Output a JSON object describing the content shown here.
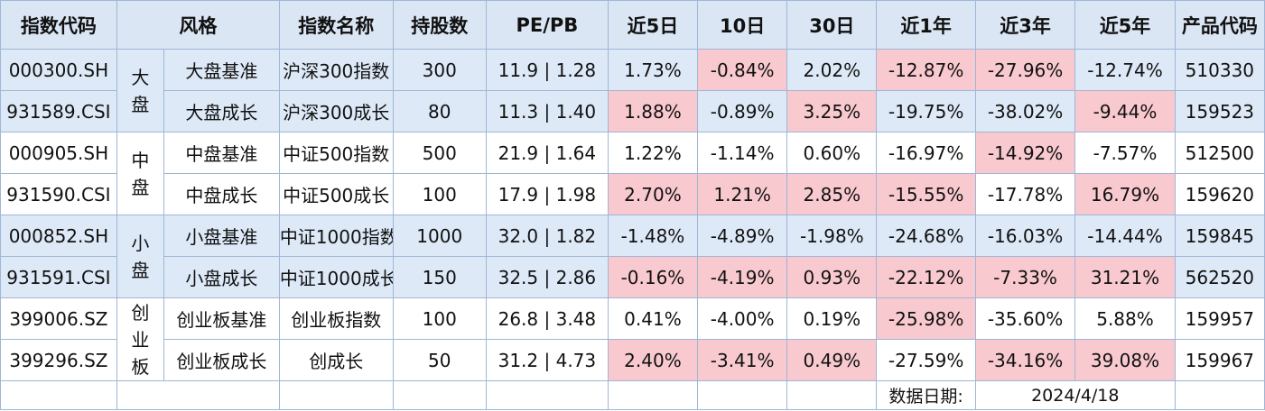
{
  "headers": [
    "指数代码",
    "风格",
    "指数名称",
    "持股数",
    "PE/PB",
    "近5日",
    "10日",
    "30日",
    "近1年",
    "近3年",
    "近5年",
    "产品代码"
  ],
  "groups": [
    {
      "style": "大\n盘"
    },
    {
      "style": "中\n盘"
    },
    {
      "style": "小\n盘"
    },
    {
      "style": "创\n业\n板"
    }
  ],
  "rows": [
    {
      "code": "000300.SH",
      "sub": "大盘基准",
      "name": "沪深300指数",
      "holdings": "300",
      "pepb": "11.9 | 1.28",
      "d5": "1.73%",
      "d10": "-0.84%",
      "d30": "2.02%",
      "y1": "-12.87%",
      "y3": "-27.96%",
      "y5": "-12.74%",
      "product": "510330"
    },
    {
      "code": "931589.CSI",
      "sub": "大盘成长",
      "name": "沪深300成长",
      "holdings": "80",
      "pepb": "11.3 | 1.40",
      "d5": "1.88%",
      "d10": "-0.89%",
      "d30": "3.25%",
      "y1": "-19.75%",
      "y3": "-38.02%",
      "y5": "-9.44%",
      "product": "159523"
    },
    {
      "code": "000905.SH",
      "sub": "中盘基准",
      "name": "中证500指数",
      "holdings": "500",
      "pepb": "21.9 | 1.64",
      "d5": "1.22%",
      "d10": "-1.14%",
      "d30": "0.60%",
      "y1": "-16.97%",
      "y3": "-14.92%",
      "y5": "-7.57%",
      "product": "512500"
    },
    {
      "code": "931590.CSI",
      "sub": "中盘成长",
      "name": "中证500成长",
      "holdings": "100",
      "pepb": "17.9 | 1.98",
      "d5": "2.70%",
      "d10": "1.21%",
      "d30": "2.85%",
      "y1": "-15.55%",
      "y3": "-17.78%",
      "y5": "16.79%",
      "product": "159620"
    },
    {
      "code": "000852.SH",
      "sub": "小盘基准",
      "name": "中证1000指数",
      "holdings": "1000",
      "pepb": "32.0 | 1.82",
      "d5": "-1.48%",
      "d10": "-4.89%",
      "d30": "-1.98%",
      "y1": "-24.68%",
      "y3": "-16.03%",
      "y5": "-14.44%",
      "product": "159845"
    },
    {
      "code": "931591.CSI",
      "sub": "小盘成长",
      "name": "中证1000成长",
      "holdings": "150",
      "pepb": "32.5 | 2.86",
      "d5": "-0.16%",
      "d10": "-4.19%",
      "d30": "0.93%",
      "y1": "-22.12%",
      "y3": "-7.33%",
      "y5": "31.21%",
      "product": "562520"
    },
    {
      "code": "399006.SZ",
      "sub": "创业板基准",
      "name": "创业板指数",
      "holdings": "100",
      "pepb": "26.8 | 3.48",
      "d5": "0.41%",
      "d10": "-4.00%",
      "d30": "0.19%",
      "y1": "-25.98%",
      "y3": "-35.60%",
      "y5": "5.88%",
      "product": "159957"
    },
    {
      "code": "399296.SZ",
      "sub": "创业板成长",
      "name": "创成长",
      "holdings": "50",
      "pepb": "31.2 | 4.73",
      "d5": "2.40%",
      "d10": "-3.41%",
      "d30": "0.49%",
      "y1": "-27.59%",
      "y3": "-34.16%",
      "y5": "39.08%",
      "product": "159967"
    }
  ],
  "footer": {
    "label": "数据日期:",
    "date": "2024/4/18"
  },
  "colors": {
    "header_bg": "#dbe6f4",
    "shade_bg": "#dde9f7",
    "highlight_bg": "#f8c9cf",
    "highlight_text": "#d21e2b",
    "border": "#9fb6d6"
  }
}
